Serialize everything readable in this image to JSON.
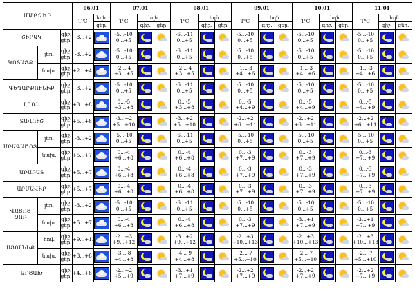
{
  "title": "ՄԱՐԶԵՐ",
  "dates": [
    "06.01",
    "07.01",
    "08.01",
    "09.01",
    "10.01",
    "11.01"
  ],
  "header": {
    "temp": "T⁰C",
    "night": "Գիշ.",
    "day": "Ցերեկ",
    "night_short": "գիշ.",
    "day_short": "ցեր."
  },
  "rows": [
    {
      "region": "ՇԻՐԱԿ",
      "sub": "",
      "pl": [
        "գիշ.",
        "ցեր."
      ],
      "d0": "-3...+2",
      "d": [
        [
          "-5...-10",
          "0...+5"
        ],
        [
          "-6...-11",
          "0...+5"
        ],
        [
          "-5...-10",
          "0...+5"
        ],
        [
          "-5...-10",
          "0...+5"
        ],
        [
          "-5...-10",
          "0...+5"
        ]
      ]
    },
    {
      "region": "ԿՈՏԱՅՔ",
      "sub": "լեռ.",
      "pl": [
        "գիշ.",
        "ցեր."
      ],
      "d0": "-3...+2",
      "d": [
        [
          "-5...-10",
          "0...+5"
        ],
        [
          "-6...-11",
          "0...+5"
        ],
        [
          "-5...-10",
          "0...+5"
        ],
        [
          "-5...-10",
          "0...+5"
        ],
        [
          "-5...-10",
          "0...+5"
        ]
      ]
    },
    {
      "region": "",
      "sub": "նախ.",
      "pl": [
        "գիշ.",
        "ցեր."
      ],
      "d0": "+2...+4",
      "d": [
        [
          "-2...-4",
          "+3...+5"
        ],
        [
          "-2...-4",
          "+3...+5"
        ],
        [
          "-1...-3",
          "+4...+6"
        ],
        [
          "-1...-3",
          "+4...+6"
        ],
        [
          "-1...-3",
          "+4...+6"
        ]
      ]
    },
    {
      "region": "ԳԵՂԱՐՔՈՒՆԻՔ",
      "sub": "",
      "pl": [
        "գիշ.",
        "ցեր."
      ],
      "d0": "-3...+2",
      "d": [
        [
          "-5...-10",
          "0...+5"
        ],
        [
          "-6...-11",
          "0...+5"
        ],
        [
          "-5...-10",
          "0...+5"
        ],
        [
          "-5...-10",
          "0...+5"
        ],
        [
          "-5...-10",
          "0...+5"
        ]
      ]
    },
    {
      "region": "ԼՈՌԻ",
      "sub": "",
      "pl": [
        "գիշ.",
        "ցեր."
      ],
      "d0": "+3...+8",
      "d": [
        [
          "0...-5",
          "+3...+8"
        ],
        [
          "0...-5",
          "+3...+8"
        ],
        [
          "0...-5",
          "+4...+9"
        ],
        [
          "0...-5",
          "+4...+9"
        ],
        [
          "0...-5",
          "+4...+9"
        ]
      ]
    },
    {
      "region": "ՏԱՎՈՒՇ",
      "sub": "",
      "pl": [
        "գիշ.",
        "ցեր."
      ],
      "d0": "+5...+8",
      "d": [
        [
          "-3...+2",
          "+5...+10"
        ],
        [
          "-3...+2",
          "+5...+10"
        ],
        [
          "-2...+2",
          "+6...+11"
        ],
        [
          "-2...+2",
          "+6...+11"
        ],
        [
          "-2...+2",
          "+6...+11"
        ]
      ]
    },
    {
      "region": "ԱՐԱԳԱԾՈՏՆ",
      "sub": "լեռ.",
      "pl": [
        "գիշ.",
        "ցեր."
      ],
      "d0": "-3...+2",
      "d": [
        [
          "-5...-10",
          "0...+5"
        ],
        [
          "-6...-11",
          "0...+5"
        ],
        [
          "-5...-10",
          "0...+5"
        ],
        [
          "-5...-10",
          "0...+5"
        ],
        [
          "-5...-10",
          "0...+5"
        ]
      ]
    },
    {
      "region": "",
      "sub": "նախ.",
      "pl": [
        "գիշ.",
        "ցեր."
      ],
      "d0": "+5...+7",
      "d": [
        [
          "0...-4",
          "+6...+8"
        ],
        [
          "0...-4",
          "+6...+8"
        ],
        [
          "0...-3",
          "+7...+9"
        ],
        [
          "0...-3",
          "+7...+9"
        ],
        [
          "0...-3",
          "+7...+9"
        ]
      ]
    },
    {
      "region": "ԱՐԱՐԱՏ",
      "sub": "",
      "pl": [
        "գիշ.",
        "ցեր."
      ],
      "d0": "+5...+7",
      "d": [
        [
          "0...-4",
          "+6...+8"
        ],
        [
          "0...-4",
          "+6...+8"
        ],
        [
          "0...-3",
          "+7...+9"
        ],
        [
          "0...-3",
          "+7...+9"
        ],
        [
          "0...-3",
          "+7...+9"
        ]
      ]
    },
    {
      "region": "ԱՐՄԱՎԻՐ",
      "sub": "",
      "pl": [
        "գիշ.",
        "ցեր."
      ],
      "d0": "+5...+7",
      "d": [
        [
          "0...-4",
          "+6...+8"
        ],
        [
          "0...-4",
          "+6...+8"
        ],
        [
          "0...-3",
          "+7...+9"
        ],
        [
          "0...-3",
          "+7...+9"
        ],
        [
          "0...-3",
          "+7...+9"
        ]
      ]
    },
    {
      "region": "ՎԱՅՈՑ ՁՈՐ",
      "sub": "լեռ.",
      "pl": [
        "գիշ.",
        "ցեր."
      ],
      "d0": "-3...+2",
      "d": [
        [
          "-5...-10",
          "0...+5"
        ],
        [
          "-6...-11",
          "0...+5"
        ],
        [
          "-5...-10",
          "0...+5"
        ],
        [
          "-5...-10",
          "0...+5"
        ],
        [
          "-5...-10",
          "0...+5"
        ]
      ]
    },
    {
      "region": "",
      "sub": "նախ.",
      "pl": [
        "գիշ.",
        "ցեր."
      ],
      "d0": "+5...+7",
      "d": [
        [
          "0...-4",
          "+6...+8"
        ],
        [
          "0...-4",
          "+6...+8"
        ],
        [
          "0...-3",
          "+7...+9"
        ],
        [
          "-3...+1",
          "+7...+9"
        ],
        [
          "-3...+1",
          "+7...+9"
        ]
      ]
    },
    {
      "region": "ՍՅՈՒՆԻՔ",
      "sub": "հով.",
      "pl": [
        "գիշ.",
        "ցեր."
      ],
      "d0": "+9...+12",
      "d": [
        [
          "-2...+3",
          "+9...+12"
        ],
        [
          "-3...+2",
          "+9...+12"
        ],
        [
          "-2...+3",
          "+10...+13"
        ],
        [
          "-2...+3",
          "+10...+13"
        ],
        [
          "-2...+3",
          "+10...+13"
        ]
      ]
    },
    {
      "region": "",
      "sub": "նախ.",
      "pl": [
        "գիշ.",
        "ցեր."
      ],
      "d0": "+3...+8",
      "d": [
        [
          "-3...-8",
          "+4...+8"
        ],
        [
          "-4...-9",
          "+4...+8"
        ],
        [
          "-2...-7",
          "+5...+10"
        ],
        [
          "-2...-7",
          "+5...+10"
        ],
        [
          "-2...-7",
          "+5...+10"
        ]
      ]
    },
    {
      "region": "ԱՐՑԱԽ",
      "sub": "",
      "pl": [
        "գիշ.",
        "ցեր."
      ],
      "d0": "+4...+8",
      "d": [
        [
          "-2...+2",
          "+5...+9"
        ],
        [
          "-3...+1",
          "+7...+9"
        ],
        [
          "-2...+2",
          "+7...+9"
        ],
        [
          "-2...+2",
          "+7...+9"
        ],
        [
          "-2...+2",
          "+7...+9"
        ]
      ]
    }
  ]
}
